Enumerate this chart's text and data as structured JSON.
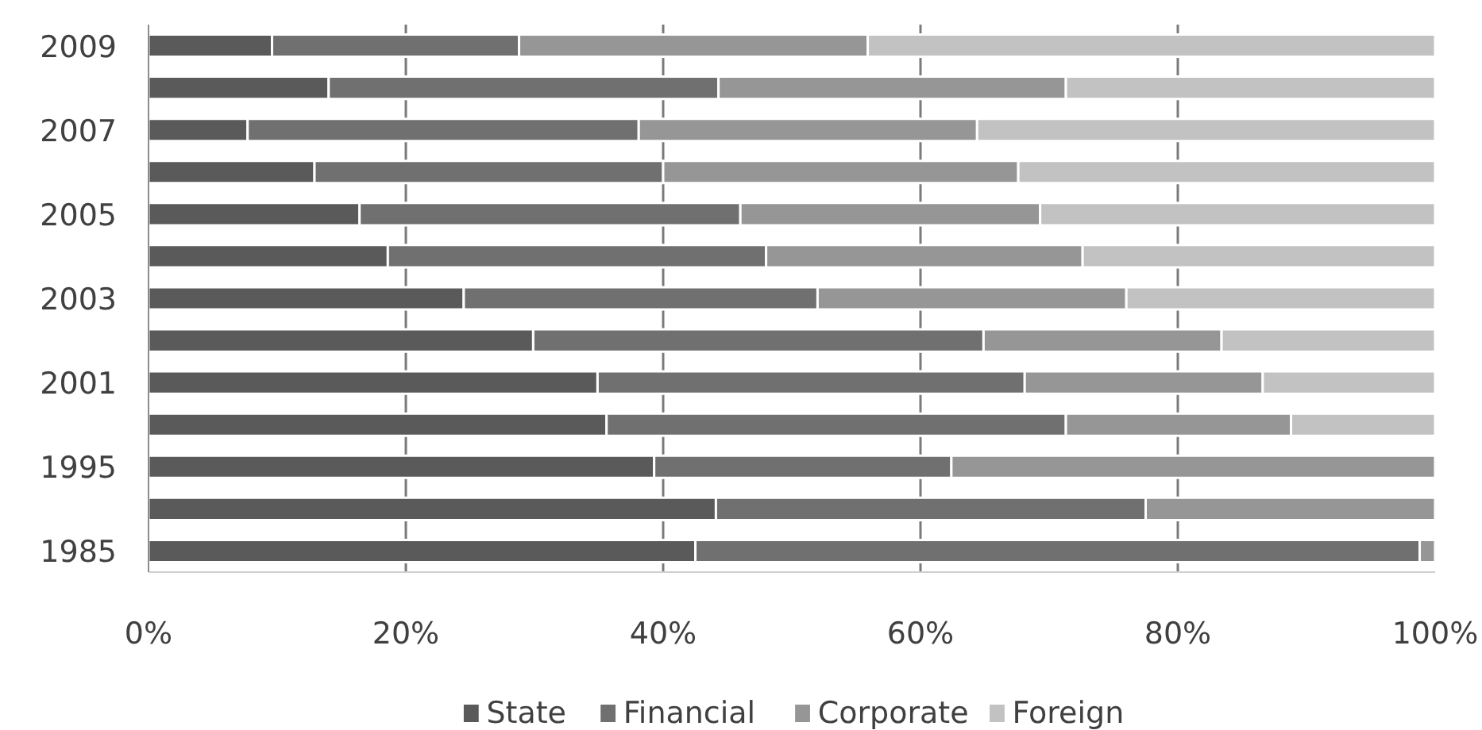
{
  "chart_data": {
    "type": "bar",
    "orientation": "horizontal",
    "stacked": true,
    "categories": [
      "2009",
      null,
      "2007",
      null,
      "2005",
      null,
      "2003",
      null,
      "2001",
      null,
      "1995",
      null,
      "1985"
    ],
    "series": [
      {
        "name": "State",
        "color": "#5a5a5a",
        "values": [
          9.6,
          14.0,
          7.7,
          12.9,
          16.4,
          18.6,
          24.5,
          29.9,
          34.9,
          35.6,
          39.3,
          44.1,
          42.5
        ]
      },
      {
        "name": "Financial",
        "color": "#707070",
        "values": [
          19.2,
          30.3,
          30.4,
          27.1,
          29.6,
          29.4,
          27.5,
          35.0,
          33.2,
          35.7,
          23.1,
          33.4,
          56.3
        ]
      },
      {
        "name": "Corporate",
        "color": "#969696",
        "values": [
          27.1,
          27.0,
          26.3,
          27.6,
          23.3,
          24.6,
          24.0,
          18.5,
          18.5,
          17.5,
          37.6,
          22.5,
          1.2
        ]
      },
      {
        "name": "Foreign",
        "color": "#c2c2c2",
        "values": [
          44.1,
          28.7,
          35.6,
          32.4,
          30.7,
          27.4,
          24.0,
          16.6,
          13.4,
          11.2,
          null,
          null,
          null
        ]
      }
    ],
    "xlim": [
      0,
      100
    ],
    "xticks": [
      {
        "value": 0,
        "label": "0%"
      },
      {
        "value": 20,
        "label": "20%"
      },
      {
        "value": 40,
        "label": "40%"
      },
      {
        "value": 60,
        "label": "60%"
      },
      {
        "value": 80,
        "label": "80%"
      },
      {
        "value": 100,
        "label": "100%"
      }
    ],
    "grid": "x",
    "legend": "bottom"
  }
}
